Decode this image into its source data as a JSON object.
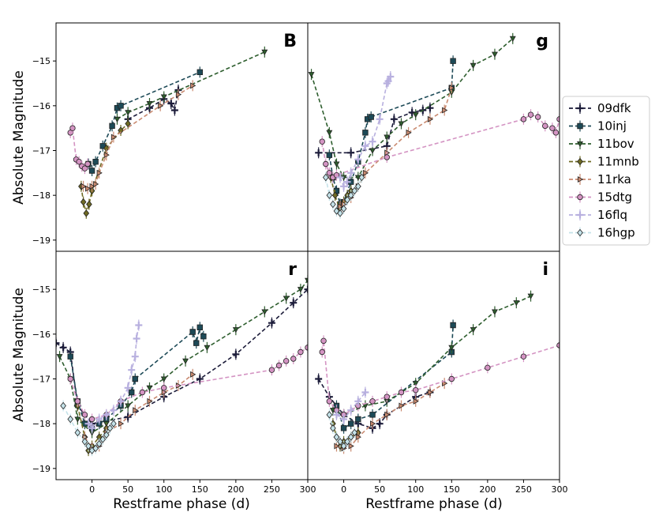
{
  "figure": {
    "xlabel": "Restframe phase (d)",
    "ylabel": "Absolute Magnitude"
  },
  "chart_data": {
    "type": "scatter",
    "shared": {
      "xlim": [
        -50,
        300
      ],
      "ylim": [
        -14.15,
        -19.25
      ],
      "xticks": [
        0,
        50,
        100,
        150,
        200,
        250,
        300
      ],
      "yticks": [
        -19,
        -18,
        -17,
        -16,
        -15
      ],
      "y_inverted": true,
      "grid": false,
      "legend_placement": "outside right"
    },
    "series_styles": [
      {
        "name": "09dfk",
        "color": "#1c1c3a",
        "marker": "plus",
        "dashed": true
      },
      {
        "name": "10inj",
        "color": "#1d4a57",
        "marker": "square",
        "dashed": true
      },
      {
        "name": "11bov",
        "color": "#2e5e2e",
        "marker": "triangle-down",
        "dashed": true
      },
      {
        "name": "11mnb",
        "color": "#6f6a23",
        "marker": "diamond",
        "dashed": true
      },
      {
        "name": "11rka",
        "color": "#c98a70",
        "marker": "triangle-right",
        "dashed": true
      },
      {
        "name": "15dtg",
        "color": "#d494c3",
        "marker": "circle",
        "dashed": true
      },
      {
        "name": "16flq",
        "color": "#b8b0df",
        "marker": "plus",
        "dashed": true
      },
      {
        "name": "16hgp",
        "color": "#c4e2e9",
        "marker": "diamond",
        "dashed": true
      }
    ],
    "panels": [
      {
        "band": "B",
        "series": [
          {
            "name": "09dfk",
            "x": [
              50,
              80,
              100,
              110,
              115,
              120
            ],
            "y": [
              -16.3,
              -16.05,
              -15.85,
              -15.95,
              -16.1,
              -15.65
            ]
          },
          {
            "name": "10inj",
            "x": [
              -5,
              0,
              5,
              15,
              28,
              35,
              40,
              150
            ],
            "y": [
              -17.3,
              -17.45,
              -17.25,
              -16.9,
              -16.45,
              -16.05,
              -16.0,
              -15.25
            ]
          },
          {
            "name": "11bov",
            "x": [
              35,
              50,
              80,
              100,
              240
            ],
            "y": [
              -16.3,
              -16.15,
              -15.95,
              -15.8,
              -14.8
            ]
          },
          {
            "name": "11mnb",
            "x": [
              -15,
              -12,
              -8,
              -4,
              0,
              20,
              40,
              50
            ],
            "y": [
              -17.8,
              -18.15,
              -18.4,
              -18.2,
              -17.9,
              -16.95,
              -16.55,
              -16.4
            ]
          },
          {
            "name": "11rka",
            "x": [
              -12,
              -6,
              0,
              5,
              10,
              20,
              30,
              95,
              120,
              140
            ],
            "y": [
              -17.8,
              -17.85,
              -17.8,
              -17.75,
              -17.5,
              -17.1,
              -16.7,
              -16.0,
              -15.75,
              -15.55
            ]
          },
          {
            "name": "15dtg",
            "x": [
              -30,
              -27,
              -22,
              -18,
              -14,
              -10,
              -6
            ],
            "y": [
              -16.6,
              -16.5,
              -17.2,
              -17.25,
              -17.35,
              -17.4,
              -17.3
            ]
          }
        ]
      },
      {
        "band": "g",
        "series": [
          {
            "name": "09dfk",
            "x": [
              -35,
              10,
              60,
              70,
              95,
              110,
              120
            ],
            "y": [
              -17.05,
              -17.05,
              -16.9,
              -16.3,
              -16.15,
              -16.1,
              -16.05
            ]
          },
          {
            "name": "10inj",
            "x": [
              -20,
              -15,
              -10,
              -5,
              0,
              10,
              20,
              30,
              33,
              38,
              150,
              152
            ],
            "y": [
              -17.1,
              -17.6,
              -17.9,
              -18.2,
              -18.15,
              -17.7,
              -17.25,
              -16.6,
              -16.3,
              -16.25,
              -15.6,
              -15.0
            ]
          },
          {
            "name": "11bov",
            "x": [
              -45,
              -20,
              -10,
              0,
              20,
              40,
              60,
              80,
              100,
              150,
              180,
              210,
              235
            ],
            "y": [
              -15.3,
              -16.6,
              -17.3,
              -17.6,
              -17.6,
              -17.0,
              -16.7,
              -16.4,
              -16.2,
              -15.7,
              -15.1,
              -14.85,
              -14.5
            ]
          },
          {
            "name": "11mnb",
            "x": [
              -18,
              -12,
              -6,
              0,
              5,
              10
            ],
            "y": [
              -17.6,
              -18.0,
              -18.3,
              -18.15,
              -18.0,
              -17.9
            ]
          },
          {
            "name": "11rka",
            "x": [
              -5,
              0,
              10,
              20,
              30,
              60,
              90,
              120,
              140,
              150
            ],
            "y": [
              -18.25,
              -18.2,
              -18.05,
              -17.8,
              -17.5,
              -17.05,
              -16.6,
              -16.3,
              -16.1,
              -15.6
            ]
          },
          {
            "name": "15dtg",
            "x": [
              -30,
              -25,
              -20,
              -15,
              -10,
              60,
              250,
              260,
              270,
              280,
              290,
              295,
              300
            ],
            "y": [
              -16.8,
              -17.3,
              -17.5,
              -17.6,
              -17.55,
              -17.15,
              -16.3,
              -16.2,
              -16.25,
              -16.45,
              -16.5,
              -16.6,
              -16.3
            ]
          },
          {
            "name": "16flq",
            "x": [
              -5,
              0,
              5,
              10,
              20,
              30,
              40,
              50,
              60,
              62,
              65
            ],
            "y": [
              -17.6,
              -17.8,
              -17.7,
              -17.5,
              -17.2,
              -16.9,
              -16.8,
              -16.3,
              -15.5,
              -15.45,
              -15.35
            ]
          },
          {
            "name": "16hgp",
            "x": [
              -25,
              -20,
              -15,
              -10,
              -5,
              0,
              5,
              10,
              15,
              20,
              25
            ],
            "y": [
              -17.6,
              -18.0,
              -18.2,
              -18.35,
              -18.4,
              -18.3,
              -18.1,
              -18.0,
              -17.9,
              -17.8,
              -17.6
            ]
          }
        ]
      },
      {
        "band": "r",
        "series": [
          {
            "name": "09dfk",
            "x": [
              -50,
              -40,
              -30,
              -20,
              0,
              50,
              100,
              150,
              200,
              250,
              280,
              300
            ],
            "y": [
              -16.2,
              -16.3,
              -16.4,
              -17.6,
              -18.0,
              -17.85,
              -17.4,
              -17.0,
              -16.45,
              -15.75,
              -15.3,
              -15.0
            ]
          },
          {
            "name": "10inj",
            "x": [
              -30,
              -20,
              -10,
              0,
              10,
              20,
              40,
              55,
              60,
              140,
              145,
              150,
              155
            ],
            "y": [
              -16.5,
              -17.5,
              -18.0,
              -18.1,
              -18.0,
              -17.9,
              -17.6,
              -17.3,
              -17.0,
              -15.95,
              -16.2,
              -15.85,
              -16.05
            ]
          },
          {
            "name": "11bov",
            "x": [
              -45,
              -30,
              -20,
              0,
              20,
              50,
              80,
              100,
              130,
              160,
              200,
              240,
              270,
              290,
              300
            ],
            "y": [
              -16.5,
              -17.0,
              -17.9,
              -18.2,
              -18.0,
              -17.6,
              -17.2,
              -17.0,
              -16.6,
              -16.3,
              -15.9,
              -15.5,
              -15.2,
              -15.0,
              -14.8
            ]
          },
          {
            "name": "11mnb",
            "x": [
              -20,
              -10,
              -5,
              0,
              10,
              20
            ],
            "y": [
              -17.6,
              -18.3,
              -18.6,
              -18.5,
              -18.3,
              -18.1
            ]
          },
          {
            "name": "11rka",
            "x": [
              -10,
              0,
              10,
              20,
              40,
              60,
              80,
              100,
              120,
              140
            ],
            "y": [
              -18.3,
              -18.55,
              -18.5,
              -18.2,
              -18.0,
              -17.7,
              -17.5,
              -17.3,
              -17.15,
              -16.9
            ]
          },
          {
            "name": "15dtg",
            "x": [
              -30,
              -20,
              -10,
              0,
              20,
              40,
              70,
              100,
              250,
              260,
              270,
              280,
              290,
              300
            ],
            "y": [
              -17.0,
              -17.5,
              -17.8,
              -17.9,
              -17.8,
              -17.5,
              -17.3,
              -17.2,
              -16.8,
              -16.7,
              -16.6,
              -16.55,
              -16.4,
              -16.3
            ]
          },
          {
            "name": "16flq",
            "x": [
              -5,
              0,
              10,
              20,
              30,
              40,
              50,
              55,
              60,
              62,
              65
            ],
            "y": [
              -18.0,
              -18.1,
              -17.9,
              -17.8,
              -17.7,
              -17.5,
              -17.2,
              -16.8,
              -16.5,
              -16.1,
              -15.8
            ]
          },
          {
            "name": "16hgp",
            "x": [
              -40,
              -30,
              -20,
              -10,
              -5,
              0,
              5,
              10,
              15,
              20,
              25,
              30
            ],
            "y": [
              -17.6,
              -17.9,
              -18.2,
              -18.4,
              -18.5,
              -18.6,
              -18.55,
              -18.45,
              -18.35,
              -18.25,
              -18.1,
              -18.0
            ]
          }
        ]
      },
      {
        "band": "i",
        "series": [
          {
            "name": "09dfk",
            "x": [
              -35,
              -20,
              0,
              20,
              40,
              50,
              60,
              100,
              120
            ],
            "y": [
              -17.0,
              -17.4,
              -17.8,
              -18.0,
              -18.1,
              -18.0,
              -17.8,
              -17.4,
              -17.3
            ]
          },
          {
            "name": "10inj",
            "x": [
              -10,
              0,
              10,
              20,
              40,
              150,
              152
            ],
            "y": [
              -17.6,
              -18.1,
              -18.0,
              -17.9,
              -17.8,
              -16.4,
              -15.8
            ]
          },
          {
            "name": "11bov",
            "x": [
              -15,
              0,
              30,
              60,
              100,
              150,
              180,
              210,
              240,
              260
            ],
            "y": [
              -17.7,
              -17.8,
              -17.6,
              -17.5,
              -17.1,
              -16.3,
              -15.9,
              -15.5,
              -15.3,
              -15.15
            ]
          },
          {
            "name": "11mnb",
            "x": [
              -15,
              -10,
              -5,
              0,
              10,
              20
            ],
            "y": [
              -18.0,
              -18.3,
              -18.5,
              -18.4,
              -18.3,
              -18.2
            ]
          },
          {
            "name": "11rka",
            "x": [
              -10,
              0,
              10,
              20,
              40,
              60,
              80,
              100,
              120,
              140
            ],
            "y": [
              -18.5,
              -18.55,
              -18.5,
              -18.3,
              -18.0,
              -17.8,
              -17.6,
              -17.5,
              -17.3,
              -17.1
            ]
          },
          {
            "name": "15dtg",
            "x": [
              -30,
              -28,
              -20,
              -10,
              0,
              20,
              40,
              60,
              80,
              100,
              150,
              200,
              250,
              300
            ],
            "y": [
              -16.4,
              -16.15,
              -17.5,
              -17.7,
              -17.8,
              -17.6,
              -17.5,
              -17.4,
              -17.3,
              -17.25,
              -17.0,
              -16.75,
              -16.5,
              -16.25
            ]
          },
          {
            "name": "16flq",
            "x": [
              -10,
              0,
              10,
              20,
              30
            ],
            "y": [
              -17.8,
              -17.9,
              -17.7,
              -17.5,
              -17.3
            ]
          },
          {
            "name": "16hgp",
            "x": [
              -20,
              -15,
              -10,
              -5,
              0,
              5,
              10,
              15
            ],
            "y": [
              -17.8,
              -18.1,
              -18.3,
              -18.4,
              -18.5,
              -18.4,
              -18.3,
              -18.2
            ]
          }
        ]
      }
    ]
  }
}
